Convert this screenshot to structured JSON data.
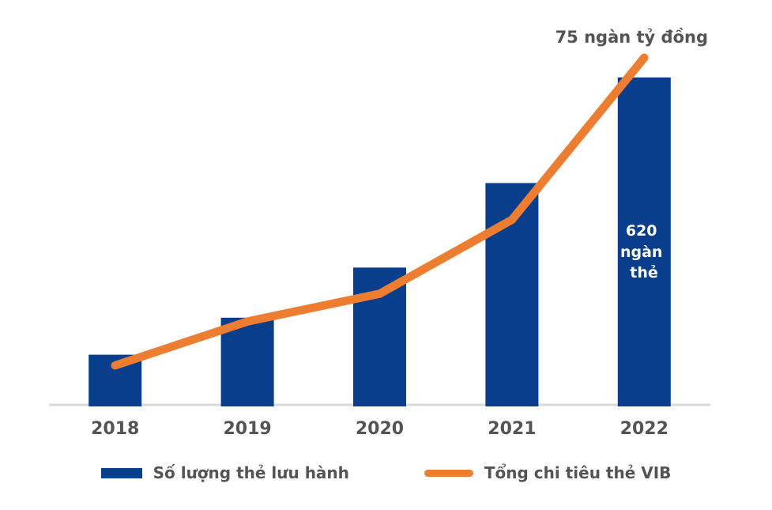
{
  "colors": {
    "bar": "#083E8C",
    "line": "#ED7D31",
    "axis": "#D9D9D9",
    "label_text": "#545454",
    "bar_label_text": "#FFFFFF",
    "background": "#FFFFFF"
  },
  "chart_data": {
    "type": "combo",
    "categories": [
      "2018",
      "2019",
      "2020",
      "2021",
      "2022"
    ],
    "series": [
      {
        "name": "Số lượng thẻ lưu hành",
        "type": "bar",
        "unit": "ngàn thẻ",
        "values": [
          95,
          165,
          260,
          420,
          620
        ],
        "estimated": [
          true,
          true,
          true,
          true,
          false
        ],
        "labeled_point": {
          "category": "2022",
          "text": "620 ngàn thẻ"
        },
        "color": "#083E8C"
      },
      {
        "name": "Tổng chi tiêu thẻ VIB",
        "type": "line",
        "unit": "ngàn tỷ đồng",
        "values": [
          8.5,
          18,
          24,
          40,
          75
        ],
        "estimated": [
          true,
          true,
          true,
          true,
          false
        ],
        "labeled_point": {
          "category": "2022",
          "text": "75 ngàn tỷ đồng"
        },
        "color": "#ED7D31"
      }
    ],
    "title": "",
    "xlabel": "",
    "ylabel": "",
    "y_axis_visible": false,
    "gridlines": false,
    "legend_position": "bottom"
  },
  "annotations": {
    "line_end": {
      "text": "75 ngàn tỷ đồng"
    },
    "bar_label": {
      "text": "620 ngàn thẻ",
      "lines": [
        "620",
        "ngàn",
        "thẻ"
      ]
    }
  }
}
